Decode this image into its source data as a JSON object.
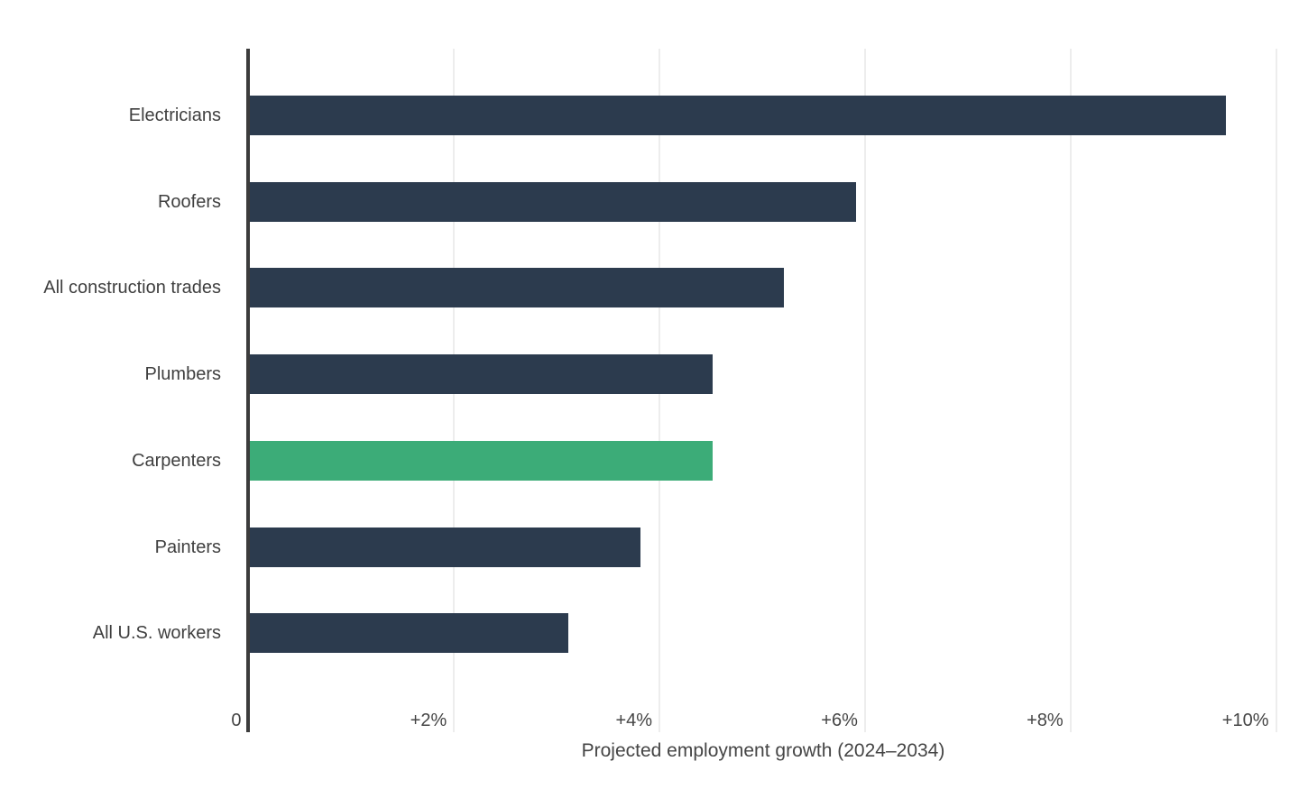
{
  "chart_data": {
    "type": "bar",
    "orientation": "horizontal",
    "title": "",
    "xlabel": "Projected employment growth (2024–2034)",
    "ylabel": "",
    "categories": [
      "Electricians",
      "Roofers",
      "All construction trades",
      "Plumbers",
      "Carpenters",
      "Painters",
      "All U.S. workers"
    ],
    "values": [
      9.5,
      5.9,
      5.2,
      4.5,
      4.5,
      3.8,
      3.1
    ],
    "unit": "percent",
    "xlim": [
      0,
      10.3
    ],
    "x_ticks": [
      {
        "value": 0,
        "label": "0"
      },
      {
        "value": 2,
        "label": "+2%"
      },
      {
        "value": 4,
        "label": "+4%"
      },
      {
        "value": 6,
        "label": "+6%"
      },
      {
        "value": 8,
        "label": "+8%"
      },
      {
        "value": 10,
        "label": "+10%"
      }
    ],
    "grid": "vertical-only",
    "legend": "none",
    "highlighted_category": "Carpenters",
    "colors": {
      "bar_default": "#2c3b4e",
      "bar_highlight": "#3cac78",
      "axis_line": "#3c3c3c",
      "gridline": "#ededed",
      "category_text": "#3f3f3f",
      "tick_text": "#454545",
      "background": "#ffffff"
    }
  }
}
